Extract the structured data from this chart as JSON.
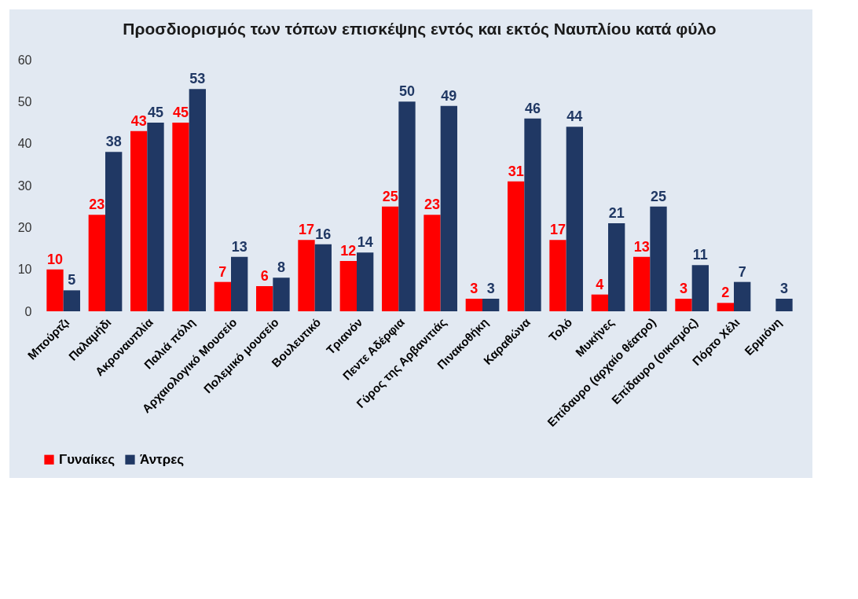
{
  "chart_data": {
    "type": "bar",
    "title": "Προσδιορισμός των τόπων επισκέψης εντός και εκτός\nΝαυπλίου κατά φύλο",
    "categories": [
      "Μπούρτζι",
      "Παλαμήδι",
      "Ακροναυπλία",
      "Παλιά πόλη",
      "Αρχαιολογικό Μουσείο",
      "Πολεμικό μουσείο",
      "Βουλευτικό",
      "Τριανόν",
      "Πεντε Αδέρφια",
      "Γύρος της Αρβανιτιάς",
      "Πινακοθήκη",
      "Καραθώνα",
      "Τολό",
      "Μυκήνες",
      "Επίδαυρο (αρχαίο θέατρο)",
      "Επίδαυρο (οικισμός)",
      "Πόρτο Χέλι",
      "Ερμιόνη"
    ],
    "series": [
      {
        "name": "Γυναίκες",
        "color": "#ff0000",
        "values": [
          10,
          23,
          43,
          45,
          7,
          6,
          17,
          12,
          25,
          23,
          3,
          31,
          17,
          4,
          13,
          3,
          2,
          null
        ]
      },
      {
        "name": "Άντρες",
        "color": "#203864",
        "values": [
          5,
          38,
          45,
          53,
          13,
          8,
          16,
          14,
          50,
          49,
          3,
          46,
          44,
          21,
          25,
          11,
          7,
          3
        ]
      }
    ],
    "ylim": [
      0,
      60
    ],
    "yticks": [
      0,
      10,
      20,
      30,
      40,
      50,
      60
    ],
    "grid": false,
    "legend": "bottom",
    "data_labels": true
  }
}
